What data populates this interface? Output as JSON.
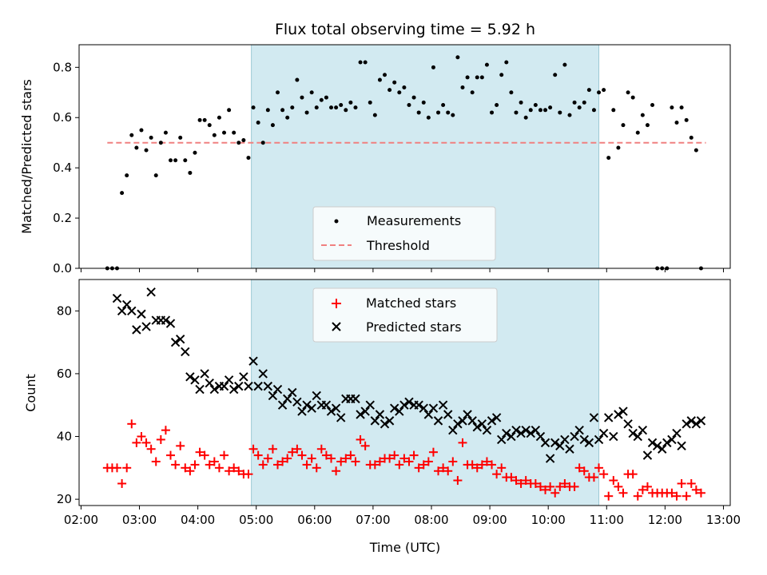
{
  "chart_data": {
    "title": "Flux total observing time = 5.92 h",
    "xlabel": "Time (UTC)",
    "x_ticks": [
      "02:00",
      "03:00",
      "04:00",
      "05:00",
      "06:00",
      "07:00",
      "08:00",
      "09:00",
      "10:00",
      "11:00",
      "12:00",
      "13:00"
    ],
    "xlim": [
      "01:58",
      "13:07"
    ],
    "shaded_span": [
      "04:55",
      "10:52"
    ],
    "colors": {
      "measurements": "#000000",
      "threshold": "#f08080",
      "matched": "#ff0000",
      "predicted": "#000000",
      "span": "#add8e6"
    },
    "panels": [
      {
        "type": "scatter",
        "ylabel": "Matched/Predicted stars",
        "ylim": [
          0,
          0.89
        ],
        "y_ticks": [
          "0.0",
          "0.2",
          "0.4",
          "0.6",
          "0.8"
        ],
        "legend_position": "lower-center",
        "series": [
          {
            "name": "Measurements",
            "x": [
              "02:27",
              "02:32",
              "02:37",
              "02:42",
              "02:47",
              "02:52",
              "02:57",
              "03:02",
              "03:07",
              "03:12",
              "03:17",
              "03:22",
              "03:27",
              "03:32",
              "03:37",
              "03:42",
              "03:47",
              "03:52",
              "03:57",
              "04:02",
              "04:07",
              "04:12",
              "04:17",
              "04:22",
              "04:27",
              "04:32",
              "04:37",
              "04:42",
              "04:47",
              "04:52",
              "04:57",
              "05:02",
              "05:07",
              "05:12",
              "05:17",
              "05:22",
              "05:27",
              "05:32",
              "05:37",
              "05:42",
              "05:47",
              "05:52",
              "05:57",
              "06:02",
              "06:07",
              "06:12",
              "06:17",
              "06:22",
              "06:27",
              "06:32",
              "06:37",
              "06:42",
              "06:47",
              "06:52",
              "06:57",
              "07:02",
              "07:07",
              "07:12",
              "07:17",
              "07:22",
              "07:27",
              "07:32",
              "07:37",
              "07:42",
              "07:47",
              "07:52",
              "07:57",
              "08:02",
              "08:07",
              "08:12",
              "08:17",
              "08:22",
              "08:27",
              "08:32",
              "08:37",
              "08:42",
              "08:47",
              "08:52",
              "08:57",
              "09:02",
              "09:07",
              "09:12",
              "09:17",
              "09:22",
              "09:27",
              "09:32",
              "09:37",
              "09:42",
              "09:47",
              "09:52",
              "09:57",
              "10:02",
              "10:07",
              "10:12",
              "10:17",
              "10:22",
              "10:27",
              "10:32",
              "10:37",
              "10:42",
              "10:47",
              "10:52",
              "10:57",
              "11:02",
              "11:07",
              "11:12",
              "11:17",
              "11:22",
              "11:27",
              "11:32",
              "11:37",
              "11:42",
              "11:47",
              "11:52",
              "11:57",
              "12:02",
              "12:07",
              "12:12",
              "12:17",
              "12:22",
              "12:27",
              "12:32",
              "12:37"
            ],
            "y": [
              0.0,
              0.0,
              0.0,
              0.3,
              0.37,
              0.53,
              0.48,
              0.55,
              0.47,
              0.52,
              0.37,
              0.5,
              0.54,
              0.43,
              0.43,
              0.52,
              0.43,
              0.38,
              0.46,
              0.59,
              0.59,
              0.57,
              0.53,
              0.6,
              0.54,
              0.63,
              0.54,
              0.5,
              0.51,
              0.44,
              0.64,
              0.58,
              0.5,
              0.63,
              0.57,
              0.7,
              0.63,
              0.6,
              0.64,
              0.75,
              0.68,
              0.62,
              0.7,
              0.64,
              0.67,
              0.68,
              0.64,
              0.64,
              0.65,
              0.63,
              0.66,
              0.64,
              0.82,
              0.82,
              0.66,
              0.61,
              0.75,
              0.77,
              0.71,
              0.74,
              0.7,
              0.72,
              0.65,
              0.68,
              0.62,
              0.66,
              0.6,
              0.8,
              0.62,
              0.65,
              0.62,
              0.61,
              0.84,
              0.72,
              0.76,
              0.7,
              0.76,
              0.76,
              0.81,
              0.62,
              0.65,
              0.77,
              0.82,
              0.7,
              0.62,
              0.66,
              0.6,
              0.63,
              0.65,
              0.63,
              0.63,
              0.64,
              0.77,
              0.62,
              0.81,
              0.61,
              0.66,
              0.64,
              0.66,
              0.71,
              0.63,
              0.7,
              0.71,
              0.44,
              0.63,
              0.48,
              0.57,
              0.7,
              0.68,
              0.54,
              0.61,
              0.57,
              0.65,
              0.0,
              0.0,
              0.0,
              0.64,
              0.58,
              0.64,
              0.59,
              0.52,
              0.47,
              0.0
            ]
          },
          {
            "name": "Threshold",
            "style": "dashed",
            "x": [
              "02:27",
              "12:42"
            ],
            "y": [
              0.5,
              0.5
            ]
          }
        ]
      },
      {
        "type": "scatter",
        "ylabel": "Count",
        "ylim": [
          18,
          90
        ],
        "y_ticks": [
          "20",
          "40",
          "60",
          "80"
        ],
        "legend_position": "upper-center",
        "series": [
          {
            "name": "Matched stars",
            "marker": "plus",
            "x": [
              "02:27",
              "02:32",
              "02:37",
              "02:42",
              "02:47",
              "02:52",
              "02:57",
              "03:02",
              "03:07",
              "03:12",
              "03:17",
              "03:22",
              "03:27",
              "03:32",
              "03:37",
              "03:42",
              "03:47",
              "03:52",
              "03:57",
              "04:02",
              "04:07",
              "04:12",
              "04:17",
              "04:22",
              "04:27",
              "04:32",
              "04:37",
              "04:42",
              "04:47",
              "04:52",
              "04:57",
              "05:02",
              "05:07",
              "05:12",
              "05:17",
              "05:22",
              "05:27",
              "05:32",
              "05:37",
              "05:42",
              "05:47",
              "05:52",
              "05:57",
              "06:02",
              "06:07",
              "06:12",
              "06:17",
              "06:22",
              "06:27",
              "06:32",
              "06:37",
              "06:42",
              "06:47",
              "06:52",
              "06:57",
              "07:02",
              "07:07",
              "07:12",
              "07:17",
              "07:22",
              "07:27",
              "07:32",
              "07:37",
              "07:42",
              "07:47",
              "07:52",
              "07:57",
              "08:02",
              "08:07",
              "08:12",
              "08:17",
              "08:22",
              "08:27",
              "08:32",
              "08:37",
              "08:42",
              "08:47",
              "08:52",
              "08:57",
              "09:02",
              "09:07",
              "09:12",
              "09:17",
              "09:22",
              "09:27",
              "09:32",
              "09:37",
              "09:42",
              "09:47",
              "09:52",
              "09:57",
              "10:02",
              "10:07",
              "10:12",
              "10:17",
              "10:22",
              "10:27",
              "10:32",
              "10:37",
              "10:42",
              "10:47",
              "10:52",
              "10:57",
              "11:02",
              "11:07",
              "11:12",
              "11:17",
              "11:22",
              "11:27",
              "11:32",
              "11:37",
              "11:42",
              "11:47",
              "11:52",
              "11:57",
              "12:02",
              "12:07",
              "12:12",
              "12:17",
              "12:22",
              "12:27",
              "12:32",
              "12:37"
            ],
            "y": [
              30,
              30,
              30,
              25,
              30,
              44,
              38,
              40,
              38,
              36,
              32,
              39,
              42,
              34,
              31,
              37,
              30,
              29,
              31,
              35,
              34,
              31,
              32,
              30,
              34,
              29,
              30,
              29,
              28,
              28,
              36,
              34,
              31,
              33,
              36,
              31,
              32,
              33,
              35,
              36,
              34,
              31,
              33,
              30,
              36,
              34,
              33,
              29,
              32,
              33,
              34,
              32,
              39,
              37,
              31,
              31,
              32,
              33,
              33,
              34,
              31,
              33,
              32,
              34,
              30,
              31,
              32,
              35,
              29,
              30,
              29,
              32,
              26,
              38,
              31,
              31,
              30,
              31,
              32,
              31,
              28,
              30,
              27,
              27,
              26,
              25,
              26,
              25,
              25,
              24,
              23,
              24,
              22,
              24,
              25,
              24,
              24,
              30,
              29,
              27,
              27,
              30,
              28,
              21,
              26,
              24,
              22,
              28,
              28,
              21,
              23,
              24,
              22,
              22,
              22,
              22,
              22,
              21,
              25,
              21,
              25,
              23,
              22
            ]
          },
          {
            "name": "Predicted stars",
            "marker": "x",
            "x": [
              "02:37",
              "02:42",
              "02:47",
              "02:52",
              "02:57",
              "03:02",
              "03:07",
              "03:12",
              "03:17",
              "03:22",
              "03:27",
              "03:32",
              "03:37",
              "03:42",
              "03:47",
              "03:52",
              "03:57",
              "04:02",
              "04:07",
              "04:12",
              "04:17",
              "04:22",
              "04:27",
              "04:32",
              "04:37",
              "04:42",
              "04:47",
              "04:52",
              "04:57",
              "05:02",
              "05:07",
              "05:12",
              "05:17",
              "05:22",
              "05:27",
              "05:32",
              "05:37",
              "05:42",
              "05:47",
              "05:52",
              "05:57",
              "06:02",
              "06:07",
              "06:12",
              "06:17",
              "06:22",
              "06:27",
              "06:32",
              "06:37",
              "06:42",
              "06:47",
              "06:52",
              "06:57",
              "07:02",
              "07:07",
              "07:12",
              "07:17",
              "07:22",
              "07:27",
              "07:32",
              "07:37",
              "07:42",
              "07:47",
              "07:52",
              "07:57",
              "08:02",
              "08:07",
              "08:12",
              "08:17",
              "08:22",
              "08:27",
              "08:32",
              "08:37",
              "08:42",
              "08:47",
              "08:52",
              "08:57",
              "09:02",
              "09:07",
              "09:12",
              "09:17",
              "09:22",
              "09:27",
              "09:32",
              "09:37",
              "09:42",
              "09:47",
              "09:52",
              "09:57",
              "10:02",
              "10:07",
              "10:12",
              "10:17",
              "10:22",
              "10:27",
              "10:32",
              "10:37",
              "10:42",
              "10:47",
              "10:52",
              "10:57",
              "11:02",
              "11:07",
              "11:12",
              "11:17",
              "11:22",
              "11:27",
              "11:32",
              "11:37",
              "11:42",
              "11:47",
              "11:52",
              "11:57",
              "12:02",
              "12:07",
              "12:12",
              "12:17",
              "12:22",
              "12:27",
              "12:32",
              "12:37"
            ],
            "y": [
              84,
              80,
              82,
              80,
              74,
              79,
              75,
              86,
              77,
              77,
              77,
              76,
              70,
              71,
              67,
              59,
              58,
              55,
              60,
              57,
              55,
              56,
              56,
              58,
              55,
              56,
              59,
              56,
              64,
              56,
              60,
              56,
              53,
              55,
              50,
              52,
              54,
              51,
              48,
              50,
              49,
              53,
              50,
              50,
              48,
              49,
              46,
              52,
              52,
              52,
              47,
              48,
              50,
              45,
              47,
              44,
              45,
              49,
              48,
              50,
              51,
              50,
              50,
              49,
              47,
              49,
              45,
              50,
              47,
              42,
              44,
              45,
              47,
              45,
              43,
              44,
              42,
              45,
              46,
              39,
              41,
              40,
              42,
              41,
              42,
              41,
              42,
              40,
              38,
              33,
              38,
              37,
              39,
              36,
              40,
              42,
              39,
              38,
              46,
              39,
              41,
              46,
              40,
              47,
              48,
              44,
              41,
              40,
              42,
              34,
              38,
              37,
              36,
              38,
              39,
              41,
              37,
              44,
              45,
              44,
              45
            ]
          }
        ]
      }
    ]
  }
}
